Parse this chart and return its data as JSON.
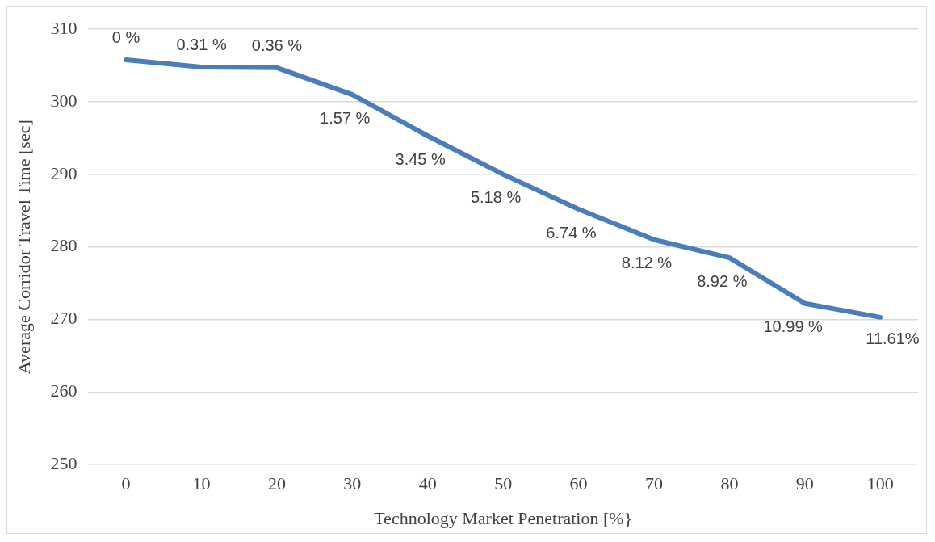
{
  "chart_data": {
    "type": "line",
    "xlabel": "Technology Market Penetration [%}",
    "ylabel": "Average Corridor Travel Time [sec]",
    "categories": [
      "0",
      "10",
      "20",
      "30",
      "40",
      "50",
      "60",
      "70",
      "80",
      "90",
      "100"
    ],
    "values": [
      305.8,
      304.8,
      304.7,
      301.0,
      295.3,
      290.0,
      285.2,
      281.0,
      278.5,
      272.2,
      270.3
    ],
    "annotations": [
      {
        "text": "0 %",
        "x": "0",
        "y": 305.8
      },
      {
        "text": "0.31 %",
        "x": "10",
        "y": 304.8
      },
      {
        "text": "0.36 %",
        "x": "20",
        "y": 304.7
      },
      {
        "text": "1.57 %",
        "x": "30",
        "y": 301.0
      },
      {
        "text": "3.45 %",
        "x": "40",
        "y": 295.3
      },
      {
        "text": "5.18 %",
        "x": "50",
        "y": 290.0
      },
      {
        "text": "6.74 %",
        "x": "60",
        "y": 285.2
      },
      {
        "text": "8.12 %",
        "x": "70",
        "y": 281.0
      },
      {
        "text": "8.92 %",
        "x": "80",
        "y": 278.5
      },
      {
        "text": "10.99 %",
        "x": "90",
        "y": 272.2
      },
      {
        "text": "11.61%",
        "x": "100",
        "y": 270.3
      }
    ],
    "color": "#4a7ebb",
    "ylim": [
      250,
      310
    ],
    "yticks": [
      250,
      260,
      270,
      280,
      290,
      300,
      310
    ],
    "grid": "y",
    "legend": false,
    "marker": "none",
    "line_style": "solid"
  }
}
